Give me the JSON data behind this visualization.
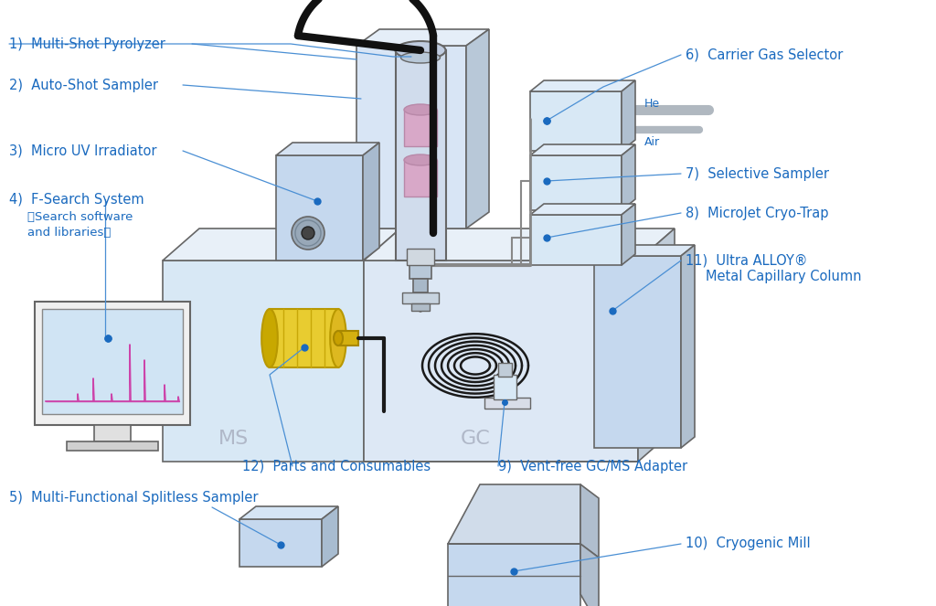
{
  "bg_color": "#ffffff",
  "text_color": "#1a6abf",
  "line_color": "#4a8fd4",
  "device_outline": "#888888",
  "light_blue": "#c5d8ee",
  "light_blue2": "#d8e8f5",
  "light_blue3": "#dde8f5",
  "light_gray": "#d8dde8",
  "medium_gray": "#999999",
  "pink": "#d8a8c8",
  "yellow": "#e8cc30",
  "gold": "#c8a800",
  "dark_gray": "#666666",
  "labels": {
    "1": "Multi-Shot Pyrolyzer",
    "2": "Auto-Shot Sampler",
    "3": "Micro UV Irradiator",
    "4a": "F-Search System",
    "4b": "（Search software",
    "4c": "and libraries）",
    "5": "Multi-Functional Splitless Sampler",
    "6": "Carrier Gas Selector",
    "7": "Selective Sampler",
    "8": "MicroJet Cryo-Trap",
    "9": "Vent-free GC/MS Adapter",
    "10": "Cryogenic Mill",
    "11a": "Ultra ALLOY®",
    "11b": "Metal Capillary Column",
    "12": "Parts and Consumables"
  },
  "ms_label": "MS",
  "gc_label": "GC"
}
